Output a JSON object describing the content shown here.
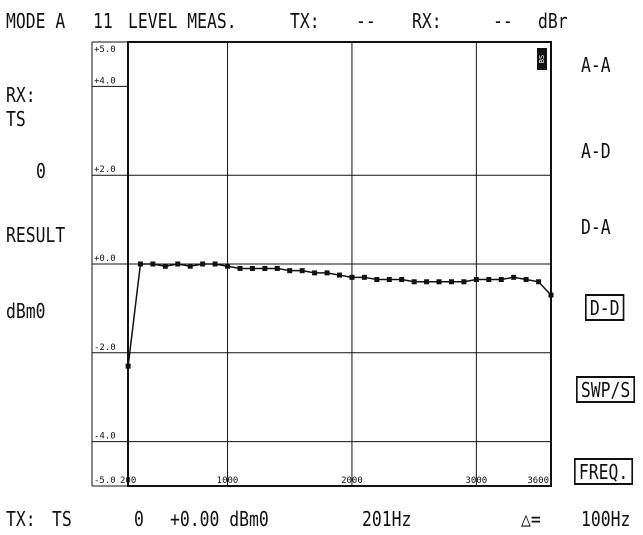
{
  "header": {
    "mode_label": "MODE A",
    "mode_number": "11",
    "function": "LEVEL MEAS.",
    "tx_label": "TX:",
    "tx_value": "--",
    "rx_label": "RX:",
    "rx_value": "--",
    "unit": "dBr"
  },
  "left_panel": {
    "rx_label": "RX:",
    "rx_source": "TS",
    "rx_value": "0",
    "result_label": "RESULT",
    "result_unit": "dBm0"
  },
  "softkeys": [
    {
      "label": "A-A",
      "selected": false
    },
    {
      "label": "A-D",
      "selected": false
    },
    {
      "label": "D-A",
      "selected": false
    },
    {
      "label": "D-D",
      "selected": true
    },
    {
      "label": "SWP/S",
      "selected": true
    },
    {
      "label": "FREQ.",
      "selected": true
    }
  ],
  "status": {
    "tx_label": "TX:",
    "tx_source": "TS",
    "tx_level_value": "0",
    "tx_level": "+0.00 dBm0",
    "frequency": "201Hz",
    "delta_symbol": "△=",
    "step": "100Hz"
  },
  "chart_data": {
    "type": "line",
    "y_tick_labels": [
      "+5.0",
      "+4.0",
      "+2.0",
      "+0.0",
      "-2.0",
      "-4.0",
      "-5.0"
    ],
    "x_tick_labels": [
      "200",
      "1000",
      "2000",
      "3000",
      "3600"
    ],
    "ylim": [
      -5,
      5
    ],
    "xlim": [
      200,
      3600
    ],
    "grid": true,
    "corner_badge": "BS",
    "series": [
      {
        "x": [
          201,
          300,
          400,
          500,
          600,
          700,
          800,
          900,
          1000,
          1100,
          1200,
          1300,
          1400,
          1500,
          1600,
          1700,
          1800,
          1900,
          2000,
          2100,
          2200,
          2300,
          2400,
          2500,
          2600,
          2700,
          2800,
          2900,
          3000,
          3100,
          3200,
          3300,
          3400,
          3500,
          3600
        ],
        "y": [
          -2.3,
          0.0,
          0.0,
          -0.05,
          0.0,
          -0.05,
          0.0,
          0.0,
          -0.05,
          -0.1,
          -0.1,
          -0.1,
          -0.1,
          -0.15,
          -0.15,
          -0.2,
          -0.2,
          -0.25,
          -0.3,
          -0.3,
          -0.35,
          -0.35,
          -0.35,
          -0.4,
          -0.4,
          -0.4,
          -0.4,
          -0.4,
          -0.35,
          -0.35,
          -0.35,
          -0.3,
          -0.35,
          -0.4,
          -0.7
        ]
      }
    ]
  }
}
